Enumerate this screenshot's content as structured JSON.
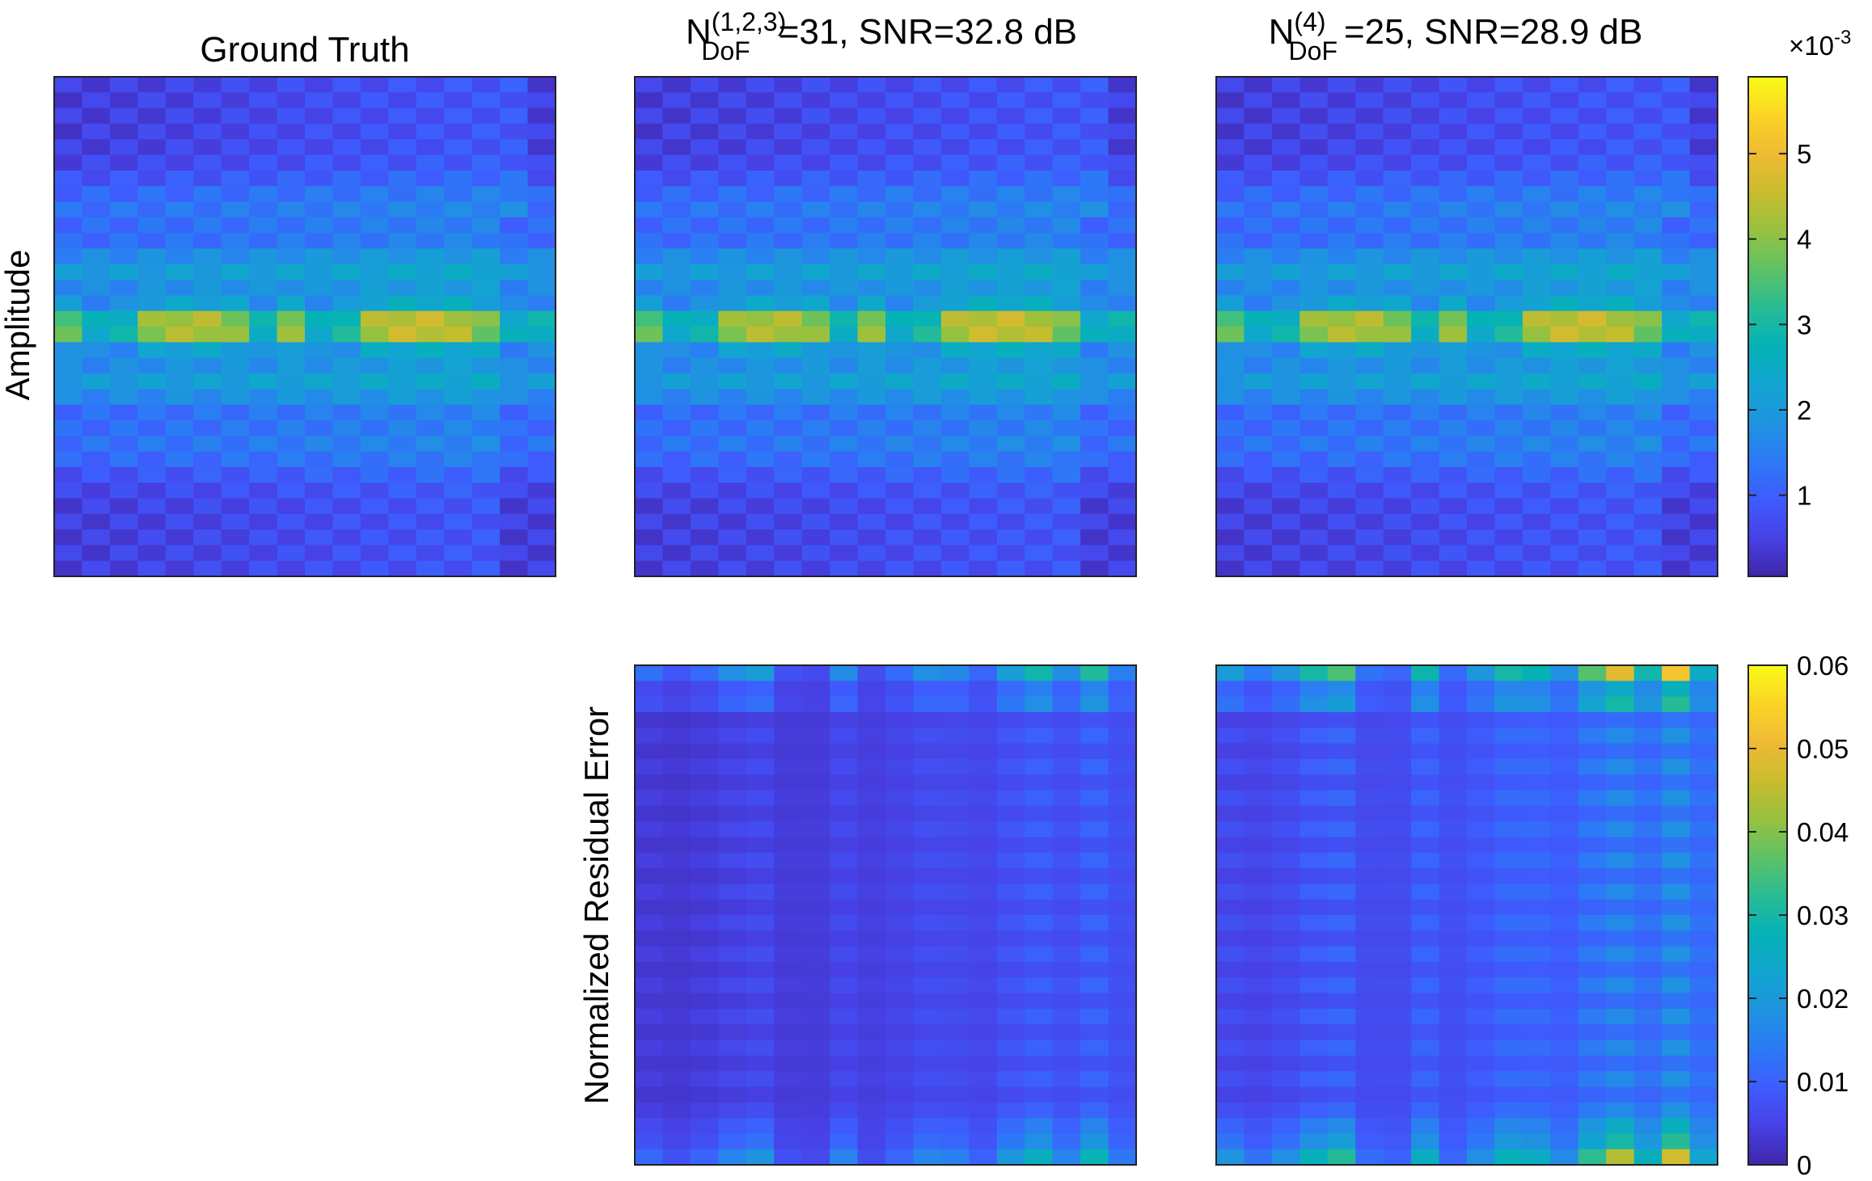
{
  "chart_data": [
    {
      "type": "heatmap",
      "id": "ground_truth",
      "title": "Ground Truth",
      "ylabel": "Amplitude",
      "cols": 18,
      "rows": 32,
      "colorbar": "amplitude"
    },
    {
      "type": "heatmap",
      "id": "recon_123",
      "title_base": "N",
      "title_sub": "DoF",
      "title_sup": "(1,2,3)",
      "title_rest": "=31, SNR=32.8 dB",
      "cols": 18,
      "rows": 32,
      "colorbar": "amplitude"
    },
    {
      "type": "heatmap",
      "id": "recon_4",
      "title_base": "N",
      "title_sub": "DoF",
      "title_sup": "(4)",
      "title_rest": "=25, SNR=28.9 dB",
      "cols": 18,
      "rows": 32,
      "colorbar": "amplitude"
    },
    {
      "type": "heatmap",
      "id": "residual_123",
      "ylabel": "Normalized Residual Error",
      "cols": 18,
      "rows": 32,
      "colorbar": "residual"
    },
    {
      "type": "heatmap",
      "id": "residual_4",
      "cols": 18,
      "rows": 32,
      "colorbar": "residual"
    }
  ],
  "colorbars": {
    "amplitude": {
      "range": [
        0.05,
        5.9
      ],
      "ticks": [
        "1",
        "2",
        "3",
        "4",
        "5"
      ],
      "tick_values": [
        1,
        2,
        3,
        4,
        5
      ],
      "multiplier_base": "×10",
      "multiplier_exp": "-3"
    },
    "residual": {
      "range": [
        0,
        0.06
      ],
      "ticks": [
        "0",
        "0.01",
        "0.02",
        "0.03",
        "0.04",
        "0.05",
        "0.06"
      ],
      "tick_values": [
        0,
        0.01,
        0.02,
        0.03,
        0.04,
        0.05,
        0.06
      ]
    }
  },
  "colormap": "parula",
  "parula_stops": [
    "#3e26a8",
    "#4741e5",
    "#3e5cfe",
    "#2c7af5",
    "#1f93e0",
    "#12a5d0",
    "#05b2b6",
    "#28bc94",
    "#5ec265",
    "#97c13f",
    "#c9bc2d",
    "#f0ba34",
    "#fbd426",
    "#f9fb15"
  ]
}
